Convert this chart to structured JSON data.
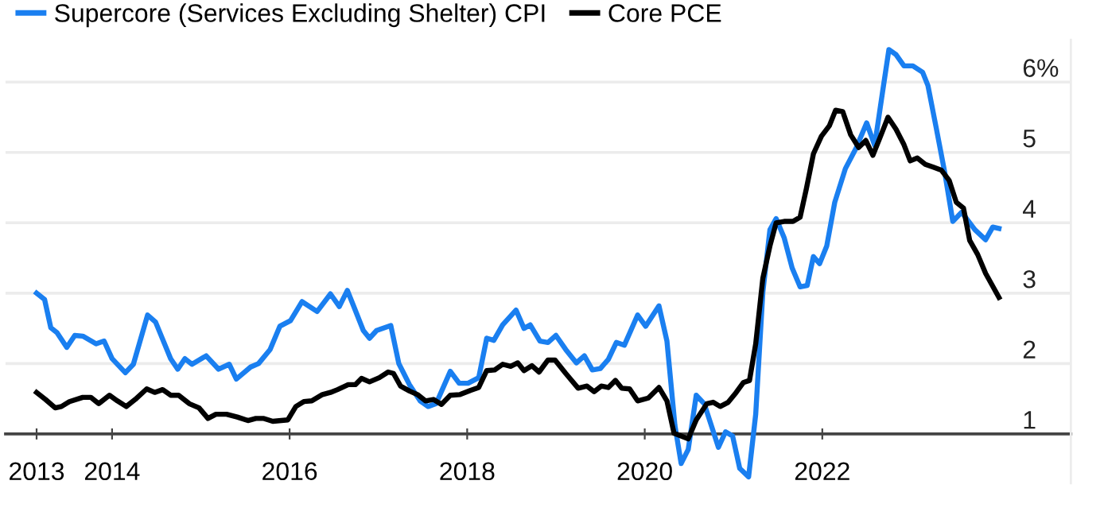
{
  "chart_data": {
    "type": "line",
    "series": [
      {
        "name": "Supercore (Services Excluding Shelter) CPI",
        "color": "#1a7ff0",
        "x": [
          2013.15,
          2013.24,
          2013.31,
          2013.38,
          2013.49,
          2013.58,
          2013.67,
          2013.82,
          2013.91,
          2014.0,
          2014.15,
          2014.24,
          2014.4,
          2014.49,
          2014.66,
          2014.74,
          2014.82,
          2014.9,
          2015.06,
          2015.2,
          2015.32,
          2015.4,
          2015.56,
          2015.65,
          2015.78,
          2015.89,
          2016.01,
          2016.14,
          2016.31,
          2016.46,
          2016.56,
          2016.65,
          2016.72,
          2016.83,
          2016.9,
          2016.98,
          2017.14,
          2017.23,
          2017.35,
          2017.47,
          2017.56,
          2017.65,
          2017.81,
          2017.91,
          2018.01,
          2018.13,
          2018.22,
          2018.3,
          2018.4,
          2018.55,
          2018.64,
          2018.71,
          2018.82,
          2018.91,
          2019.0,
          2019.11,
          2019.23,
          2019.32,
          2019.41,
          2019.5,
          2019.59,
          2019.68,
          2019.77,
          2019.92,
          2020.01,
          2020.16,
          2020.25,
          2020.34,
          2020.41,
          2020.49,
          2020.58,
          2020.67,
          2020.75,
          2020.83,
          2020.91,
          2020.99,
          2021.07,
          2021.17,
          2021.25,
          2021.33,
          2021.41,
          2021.48,
          2021.57,
          2021.66,
          2021.75,
          2021.83,
          2021.9,
          2021.97,
          2022.05,
          2022.14,
          2022.26,
          2022.38,
          2022.5,
          2022.59,
          2022.68,
          2022.75,
          2022.83,
          2022.92,
          2023.02,
          2023.13,
          2023.19,
          2023.28,
          2023.38,
          2023.47,
          2023.57,
          2023.72,
          2023.84,
          2023.92,
          2023.99
        ],
        "values": [
          3.0,
          2.91,
          2.51,
          2.44,
          2.23,
          2.4,
          2.39,
          2.28,
          2.32,
          2.07,
          1.87,
          1.99,
          2.69,
          2.59,
          2.07,
          1.92,
          2.07,
          1.99,
          2.11,
          1.92,
          1.99,
          1.78,
          1.95,
          2.0,
          2.2,
          2.53,
          2.61,
          2.88,
          2.74,
          2.99,
          2.81,
          3.04,
          2.82,
          2.47,
          2.36,
          2.47,
          2.54,
          2.0,
          1.7,
          1.47,
          1.39,
          1.43,
          1.89,
          1.72,
          1.72,
          1.8,
          2.36,
          2.33,
          2.55,
          2.76,
          2.5,
          2.55,
          2.32,
          2.3,
          2.4,
          2.2,
          2.01,
          2.11,
          1.91,
          1.93,
          2.06,
          2.3,
          2.26,
          2.69,
          2.53,
          2.82,
          2.32,
          1.12,
          0.58,
          0.78,
          1.55,
          1.43,
          1.12,
          0.81,
          1.03,
          0.97,
          0.51,
          0.39,
          1.28,
          3.01,
          3.9,
          4.06,
          3.79,
          3.36,
          3.09,
          3.11,
          3.52,
          3.42,
          3.67,
          4.29,
          4.77,
          5.06,
          5.42,
          5.1,
          5.87,
          6.46,
          6.39,
          6.23,
          6.23,
          6.14,
          5.95,
          5.37,
          4.71,
          4.02,
          4.15,
          3.9,
          3.76,
          3.94,
          3.92
        ]
      },
      {
        "name": "Core PCE",
        "color": "#000000",
        "x": [
          2013.15,
          2013.25,
          2013.36,
          2013.43,
          2013.52,
          2013.67,
          2013.76,
          2013.85,
          2013.97,
          2014.06,
          2014.16,
          2014.26,
          2014.39,
          2014.48,
          2014.57,
          2014.66,
          2014.75,
          2014.87,
          2014.98,
          2015.08,
          2015.17,
          2015.29,
          2015.41,
          2015.53,
          2015.62,
          2015.71,
          2015.81,
          2015.98,
          2016.07,
          2016.16,
          2016.25,
          2016.37,
          2016.46,
          2016.54,
          2016.66,
          2016.74,
          2016.81,
          2016.9,
          2017.01,
          2017.11,
          2017.17,
          2017.25,
          2017.35,
          2017.44,
          2017.53,
          2017.62,
          2017.71,
          2017.81,
          2017.92,
          2018.04,
          2018.13,
          2018.22,
          2018.31,
          2018.4,
          2018.49,
          2018.57,
          2018.64,
          2018.73,
          2018.81,
          2018.91,
          2018.99,
          2019.11,
          2019.25,
          2019.35,
          2019.43,
          2019.51,
          2019.59,
          2019.67,
          2019.74,
          2019.83,
          2019.92,
          2020.04,
          2020.16,
          2020.25,
          2020.33,
          2020.41,
          2020.49,
          2020.58,
          2020.7,
          2020.77,
          2020.85,
          2020.94,
          2021.03,
          2021.11,
          2021.18,
          2021.25,
          2021.33,
          2021.41,
          2021.48,
          2021.57,
          2021.67,
          2021.75,
          2021.82,
          2021.9,
          2021.99,
          2022.08,
          2022.15,
          2022.23,
          2022.32,
          2022.41,
          2022.49,
          2022.57,
          2022.65,
          2022.74,
          2022.83,
          2022.92,
          2022.99,
          2023.07,
          2023.16,
          2023.25,
          2023.34,
          2023.43,
          2023.51,
          2023.59,
          2023.66,
          2023.75,
          2023.84,
          2023.99
        ],
        "values": [
          1.59,
          1.49,
          1.37,
          1.39,
          1.46,
          1.52,
          1.52,
          1.43,
          1.55,
          1.47,
          1.39,
          1.49,
          1.64,
          1.59,
          1.63,
          1.55,
          1.55,
          1.43,
          1.37,
          1.22,
          1.28,
          1.28,
          1.24,
          1.19,
          1.22,
          1.22,
          1.18,
          1.2,
          1.39,
          1.46,
          1.47,
          1.56,
          1.59,
          1.63,
          1.7,
          1.7,
          1.79,
          1.74,
          1.8,
          1.88,
          1.86,
          1.68,
          1.61,
          1.56,
          1.47,
          1.49,
          1.42,
          1.55,
          1.56,
          1.62,
          1.66,
          1.9,
          1.91,
          1.99,
          1.96,
          2.01,
          1.9,
          1.97,
          1.88,
          2.05,
          2.05,
          1.86,
          1.65,
          1.68,
          1.6,
          1.68,
          1.66,
          1.76,
          1.65,
          1.64,
          1.47,
          1.51,
          1.66,
          1.47,
          1.01,
          0.97,
          0.93,
          1.2,
          1.43,
          1.45,
          1.39,
          1.45,
          1.59,
          1.73,
          1.76,
          2.28,
          3.21,
          3.67,
          4.0,
          4.02,
          4.02,
          4.08,
          4.48,
          4.98,
          5.23,
          5.38,
          5.6,
          5.58,
          5.25,
          5.07,
          5.17,
          4.96,
          5.21,
          5.5,
          5.33,
          5.11,
          4.88,
          4.92,
          4.83,
          4.79,
          4.75,
          4.6,
          4.29,
          4.21,
          3.75,
          3.55,
          3.28,
          2.94
        ]
      }
    ],
    "xlim": [
      2012.8,
      2024.8
    ],
    "xticks": [
      {
        "value": 2013.15,
        "label": "2013"
      },
      2014,
      2016,
      2018,
      2020,
      2022
    ],
    "ylim": [
      0.3,
      6.6
    ],
    "yticks": [
      1,
      2,
      3,
      4,
      5,
      {
        "value": 6,
        "label": "6%"
      }
    ],
    "grid": "y",
    "legend": "top left",
    "marker": "none",
    "line_style": "solid"
  }
}
